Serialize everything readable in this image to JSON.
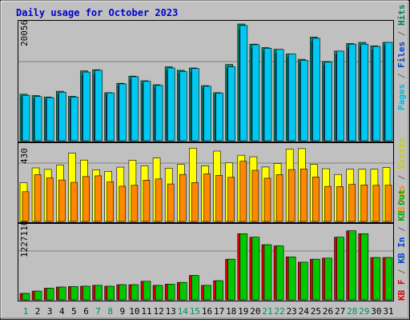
{
  "title": "Daily usage for October 2023",
  "days": [
    "1",
    "2",
    "3",
    "4",
    "5",
    "6",
    "7",
    "8",
    "9",
    "10",
    "11",
    "12",
    "13",
    "14",
    "15",
    "16",
    "17",
    "18",
    "19",
    "20",
    "21",
    "22",
    "23",
    "24",
    "25",
    "26",
    "27",
    "28",
    "29",
    "30",
    "31"
  ],
  "weekend_days": [
    1,
    7,
    8,
    14,
    15,
    21,
    22,
    28,
    29
  ],
  "panels": {
    "top": {
      "max_label": "20056",
      "max_value": 20056,
      "legend": [
        {
          "text": "Pages",
          "color": "#00b8e0"
        },
        {
          "text": " / ",
          "color": "#666666"
        },
        {
          "text": "Files",
          "color": "#0044cc"
        },
        {
          "text": " / ",
          "color": "#666666"
        },
        {
          "text": "Hits",
          "color": "#007c5c"
        }
      ]
    },
    "mid": {
      "max_label": "430",
      "max_value": 430,
      "legend": [
        {
          "text": "Sites",
          "color": "#ff8800"
        },
        {
          "text": " / ",
          "color": "#666666"
        },
        {
          "text": "Visits",
          "color": "#cccc00"
        }
      ]
    },
    "bot": {
      "max_label": "1227110",
      "max_value": 1227110,
      "legend": [
        {
          "text": "KB F",
          "color": "#dd0000"
        },
        {
          "text": " / ",
          "color": "#666666"
        },
        {
          "text": "KB In",
          "color": "#0044cc"
        },
        {
          "text": " / ",
          "color": "#666666"
        },
        {
          "text": "KB Out",
          "color": "#00aa00"
        }
      ]
    }
  },
  "chart_data": {
    "type": "bar",
    "title": "Daily usage for October 2023",
    "categories": [
      "1",
      "2",
      "3",
      "4",
      "5",
      "6",
      "7",
      "8",
      "9",
      "10",
      "11",
      "12",
      "13",
      "14",
      "15",
      "16",
      "17",
      "18",
      "19",
      "20",
      "21",
      "22",
      "23",
      "24",
      "25",
      "26",
      "27",
      "28",
      "29",
      "30",
      "31"
    ],
    "series": [
      {
        "name": "Hits",
        "color": "#00906e",
        "values": [
          8000,
          7760,
          7520,
          8510,
          7640,
          12000,
          12200,
          8260,
          9860,
          11100,
          10300,
          9620,
          12700,
          12100,
          12500,
          9470,
          8260,
          13100,
          20056,
          16600,
          16000,
          15700,
          14900,
          14000,
          17800,
          13600,
          15400,
          16700,
          16900,
          16300,
          16900
        ]
      },
      {
        "name": "Files",
        "color": "#0044cc",
        "values": [
          7500,
          7200,
          7100,
          8000,
          7200,
          11200,
          11400,
          7900,
          9400,
          10500,
          9800,
          9100,
          12000,
          11500,
          11800,
          9000,
          7900,
          12400,
          19000,
          15900,
          15300,
          15000,
          14300,
          13500,
          17000,
          13000,
          14800,
          16000,
          16200,
          15600,
          16300
        ]
      },
      {
        "name": "Pages",
        "color": "#00c8f0",
        "values": [
          7800,
          7580,
          7400,
          8340,
          7520,
          11800,
          12100,
          8220,
          9770,
          11000,
          10200,
          9510,
          12500,
          11900,
          12400,
          9360,
          8170,
          12700,
          19800,
          16500,
          15900,
          15700,
          14900,
          13800,
          17600,
          13500,
          15400,
          16600,
          16600,
          16200,
          16900
        ]
      },
      {
        "name": "Visits",
        "color": "#ffff00",
        "values": [
          224,
          310,
          301,
          326,
          395,
          355,
          299,
          290,
          314,
          354,
          322,
          367,
          308,
          330,
          424,
          322,
          407,
          340,
          383,
          374,
          315,
          335,
          418,
          421,
          330,
          305,
          272,
          302,
          302,
          302,
          312
        ]
      },
      {
        "name": "Sites",
        "color": "#ff8800",
        "values": [
          172,
          271,
          252,
          240,
          226,
          260,
          264,
          229,
          204,
          209,
          239,
          246,
          217,
          272,
          225,
          275,
          267,
          255,
          348,
          296,
          250,
          271,
          300,
          304,
          257,
          203,
          202,
          214,
          211,
          209,
          210
        ]
      },
      {
        "name": "KB F",
        "color": "#dd0000",
        "values": [
          110000,
          150000,
          200000,
          220000,
          230000,
          235000,
          250000,
          235000,
          260000,
          260000,
          320000,
          250000,
          270000,
          300000,
          420000,
          250000,
          330000,
          700000,
          1140000,
          1080000,
          950000,
          930000,
          740000,
          650000,
          700000,
          720000,
          1080000,
          1190000,
          1140000,
          730000,
          730000
        ]
      },
      {
        "name": "KB Out",
        "color": "#00c800",
        "values": [
          110000,
          150000,
          200000,
          220000,
          230000,
          235000,
          250000,
          235000,
          260000,
          260000,
          320000,
          250000,
          270000,
          300000,
          420000,
          250000,
          330000,
          700000,
          1140000,
          1080000,
          950000,
          930000,
          740000,
          650000,
          700000,
          720000,
          1080000,
          1190000,
          1140000,
          730000,
          730000
        ]
      }
    ]
  }
}
